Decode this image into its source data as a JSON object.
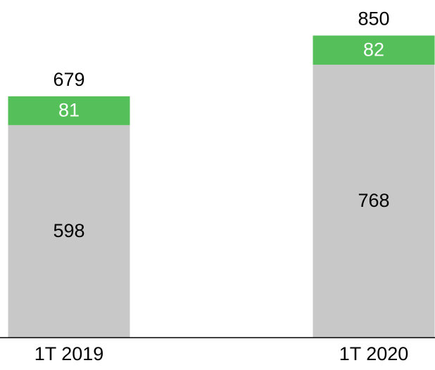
{
  "chart_data": {
    "type": "stacked-bar",
    "categories": [
      "1T 2019",
      "1T 2020"
    ],
    "series": [
      {
        "color": "#c8c8c8",
        "values": [
          598,
          768
        ]
      },
      {
        "color": "#55bf5a",
        "values": [
          81,
          82
        ]
      }
    ],
    "totals": [
      679,
      850
    ],
    "ylim": [
      0,
      950
    ]
  }
}
